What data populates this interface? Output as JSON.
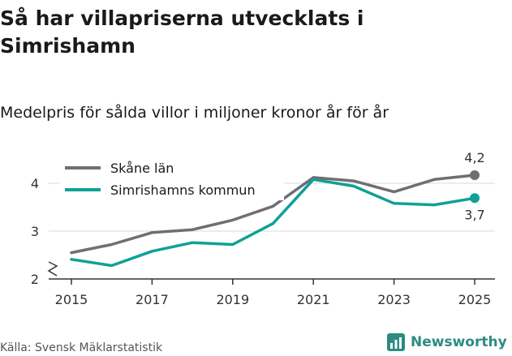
{
  "title": "Så har villapriserna utvecklats i Simrishamn",
  "subtitle": "Medelpris för sålda villor i miljoner kronor år för år",
  "source": "Källa: Svensk Mäklarstatistik",
  "brand": "Newsworthy",
  "colors": {
    "skane": "#6f6e75",
    "simrishamn": "#0fa196",
    "brand": "#2a8c82"
  },
  "chart_data": {
    "type": "line",
    "title": "Så har villapriserna utvecklats i Simrishamn",
    "subtitle": "Medelpris för sålda villor i miljoner kronor år för år",
    "xlabel": "",
    "ylabel": "",
    "x": [
      2015,
      2016,
      2017,
      2018,
      2019,
      2020,
      2021,
      2022,
      2023,
      2024,
      2025
    ],
    "x_ticks": [
      "2015",
      "2017",
      "2019",
      "2021",
      "2023",
      "2025"
    ],
    "y_ticks": [
      "2",
      "3",
      "4"
    ],
    "ylim": [
      2,
      4.3
    ],
    "legend_position": "top-left",
    "series": [
      {
        "name": "Skåne län",
        "values": [
          2.55,
          2.72,
          2.97,
          3.03,
          3.23,
          3.52,
          4.12,
          4.05,
          3.82,
          4.08,
          4.17
        ],
        "end_label": "4,2"
      },
      {
        "name": "Simrishamns kommun",
        "values": [
          2.41,
          2.28,
          2.58,
          2.76,
          2.72,
          3.16,
          4.08,
          3.94,
          3.58,
          3.55,
          3.69
        ],
        "end_label": "3,7"
      }
    ]
  }
}
